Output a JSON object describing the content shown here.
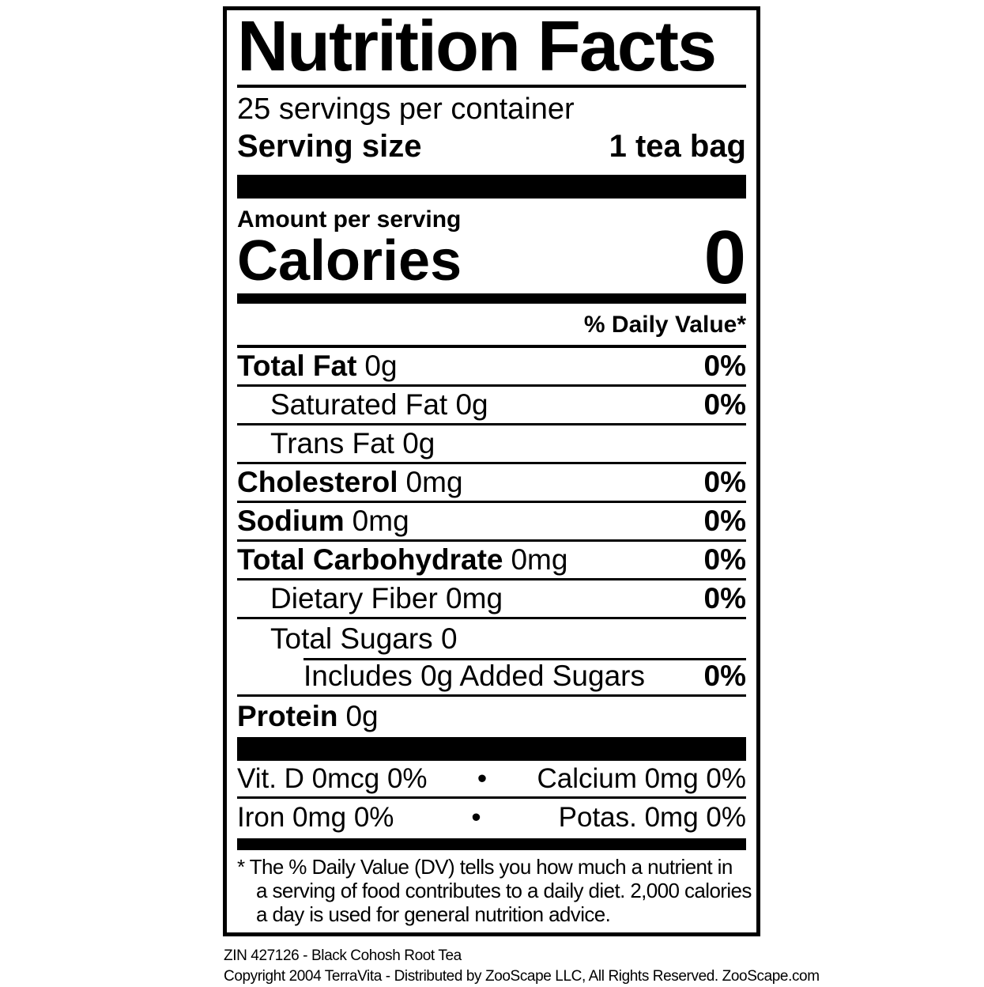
{
  "label": {
    "title": "Nutrition Facts",
    "servings_per_container": "25 servings per container",
    "serving_size": {
      "label": "Serving size",
      "value": "1 tea bag"
    },
    "amount_per_serving": "Amount per serving",
    "calories": {
      "label": "Calories",
      "value": "0"
    },
    "daily_value_header": "% Daily Value*",
    "nutrients": [
      {
        "name": "Total Fat",
        "amount": "0g",
        "percent": "0%"
      },
      {
        "name": "",
        "amount": "Saturated Fat 0g",
        "percent": "0%"
      },
      {
        "name": "",
        "amount": "Trans Fat 0g",
        "percent": ""
      },
      {
        "name": "Cholesterol",
        "amount": "0mg",
        "percent": "0%"
      },
      {
        "name": "Sodium",
        "amount": "0mg",
        "percent": "0%"
      },
      {
        "name": "Total Carbohydrate",
        "amount": "0mg",
        "percent": "0%"
      },
      {
        "name": "",
        "amount": "Dietary Fiber 0mg",
        "percent": "0%"
      },
      {
        "name": "",
        "amount": "Total Sugars 0",
        "percent": ""
      },
      {
        "name": "",
        "amount": "Includes 0g Added Sugars",
        "percent": "0%"
      },
      {
        "name": "Protein",
        "amount": "0g",
        "percent": ""
      }
    ],
    "micronutrients": {
      "bullet": "•",
      "rows": [
        {
          "left": "Vit. D 0mcg 0%",
          "right": "Calcium 0mg 0%"
        },
        {
          "left": "Iron 0mg 0%",
          "right": "Potas. 0mg 0%"
        }
      ]
    },
    "footnote_lines": [
      "* The % Daily Value (DV) tells you how much a nutrient in",
      "a serving of food contributes to a daily diet. 2,000 calories",
      "a day is used for general nutrition advice."
    ]
  },
  "footer": {
    "product_line": "ZIN 427126 - Black Cohosh Root Tea",
    "copyright_line": "Copyright 2004 TerraVita - Distributed by ZooScape LLC, All Rights Reserved. ZooScape.com"
  },
  "colors": {
    "ink": "#000000",
    "background": "#ffffff"
  }
}
